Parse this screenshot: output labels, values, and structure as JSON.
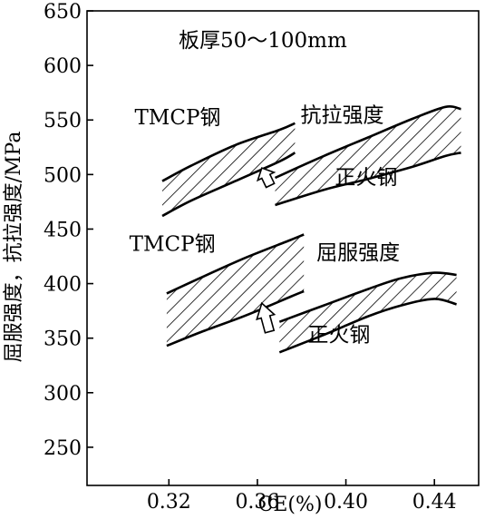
{
  "chart_data": {
    "type": "area",
    "title": "",
    "note": "板厚50～100mm",
    "xlabel": "CE(%)",
    "ylabel": "屈服强度，抗拉强度/MPa",
    "xlim": [
      0.283,
      0.46
    ],
    "ylim": [
      215,
      650
    ],
    "x_ticks": [
      0.32,
      0.36,
      0.4,
      0.44
    ],
    "x_tick_labels": [
      "0.32",
      "0.36",
      "0.40",
      "0.44"
    ],
    "y_ticks": [
      250,
      300,
      350,
      400,
      450,
      500,
      550,
      600,
      650
    ],
    "y_tick_labels": [
      "250",
      "300",
      "350",
      "400",
      "450",
      "500",
      "550",
      "600",
      "650"
    ],
    "grid": false,
    "bands": [
      {
        "id": "tmcp-tensile",
        "x": [
          0.317,
          0.33,
          0.35,
          0.37,
          0.377
        ],
        "upper": [
          494,
          508,
          527,
          541,
          547
        ],
        "lower": [
          462,
          476,
          494,
          512,
          520
        ]
      },
      {
        "id": "normalized-tensile",
        "x": [
          0.368,
          0.39,
          0.41,
          0.43,
          0.445,
          0.452
        ],
        "upper": [
          497,
          517,
          534,
          551,
          562,
          560
        ],
        "lower": [
          472,
          486,
          496,
          507,
          517,
          520
        ]
      },
      {
        "id": "tmcp-yield",
        "x": [
          0.319,
          0.335,
          0.355,
          0.375,
          0.381
        ],
        "upper": [
          391,
          406,
          424,
          440,
          445
        ],
        "lower": [
          343,
          356,
          371,
          388,
          393
        ]
      },
      {
        "id": "normalized-yield",
        "x": [
          0.37,
          0.39,
          0.41,
          0.425,
          0.44,
          0.45
        ],
        "upper": [
          365,
          380,
          395,
          405,
          410,
          408
        ],
        "lower": [
          337,
          353,
          370,
          380,
          386,
          381
        ]
      }
    ],
    "annotations": [
      {
        "text": "TMCP钢",
        "x": 0.3045,
        "y": 546
      },
      {
        "text": "抗拉强度",
        "x": 0.3795,
        "y": 548
      },
      {
        "text": "正火钢",
        "x": 0.395,
        "y": 491
      },
      {
        "text": "TMCP钢",
        "x": 0.3021,
        "y": 430
      },
      {
        "text": "屈服强度",
        "x": 0.3867,
        "y": 422
      },
      {
        "text": "正火钢",
        "x": 0.3827,
        "y": 347
      }
    ],
    "arrows": [
      {
        "tip_x": 0.362,
        "tip_y": 506,
        "from_x": 0.3658,
        "from_y": 490
      },
      {
        "tip_x": 0.362,
        "tip_y": 382,
        "from_x": 0.3655,
        "from_y": 356
      }
    ]
  }
}
